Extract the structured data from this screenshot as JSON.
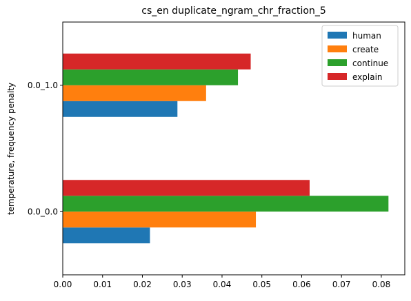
{
  "chart_data": {
    "type": "bar",
    "orientation": "horizontal",
    "title": "cs_en duplicate_ngram_chr_fraction_5",
    "xlabel": "",
    "ylabel": "temperature, frequency penalty",
    "categories": [
      "0.0_0.0",
      "0.0_1.0"
    ],
    "series": [
      {
        "name": "human",
        "color": "#1f77b4",
        "values": [
          0.0219,
          0.0288
        ]
      },
      {
        "name": "create",
        "color": "#ff7f0e",
        "values": [
          0.0485,
          0.036
        ]
      },
      {
        "name": "continue",
        "color": "#2ca02c",
        "values": [
          0.0818,
          0.044
        ]
      },
      {
        "name": "explain",
        "color": "#d62728",
        "values": [
          0.062,
          0.0472
        ]
      }
    ],
    "xlim": [
      0,
      0.0859
    ],
    "xticks": [
      "0.00",
      "0.01",
      "0.02",
      "0.03",
      "0.04",
      "0.05",
      "0.06",
      "0.07",
      "0.08"
    ],
    "grid": false,
    "legend_position": "top-right"
  }
}
